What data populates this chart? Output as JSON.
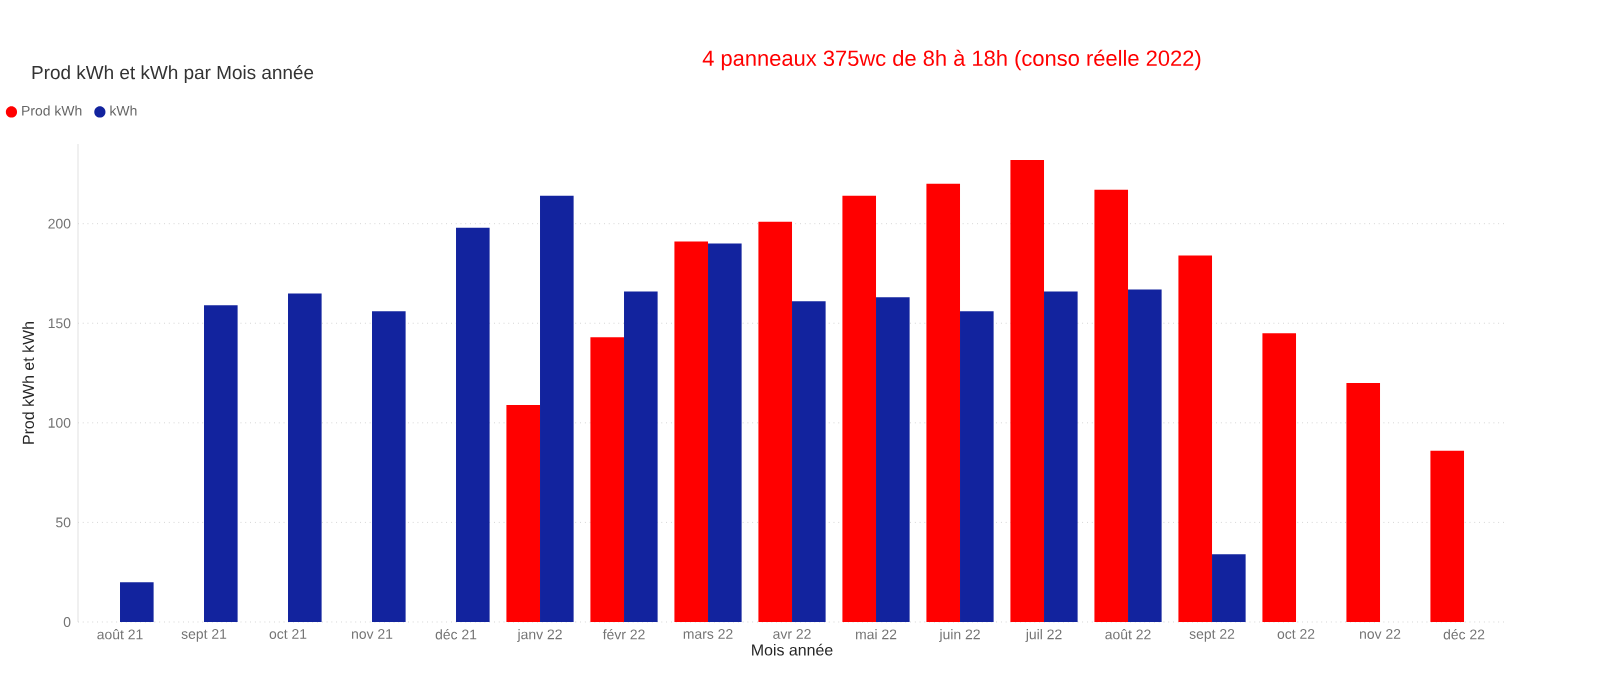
{
  "chart_data": {
    "type": "bar",
    "title": "Prod kWh et kWh par Mois année",
    "annotations": [
      "4 panneaux 375wc de 8h à 18h (conso réelle 2022)"
    ],
    "xlabel": "Mois année",
    "ylabel": "Prod kWh et kWh",
    "categories": [
      "août 21",
      "sept 21",
      "oct 21",
      "nov 21",
      "déc 21",
      "janv 22",
      "févr 22",
      "mars 22",
      "avr 22",
      "mai 22",
      "juin 22",
      "juil 22",
      "août 22",
      "sept 22",
      "oct 22",
      "nov 22",
      "déc 22"
    ],
    "series": [
      {
        "name": "Prod kWh",
        "color": "#ff0000",
        "values": [
          null,
          null,
          null,
          null,
          null,
          109,
          143,
          191,
          201,
          214,
          220,
          232,
          217,
          184,
          145,
          120,
          86
        ]
      },
      {
        "name": "kWh",
        "color": "#12239e",
        "values": [
          20,
          159,
          165,
          156,
          198,
          214,
          166,
          190,
          161,
          163,
          156,
          166,
          167,
          34,
          null,
          null,
          null
        ]
      }
    ],
    "ylim": [
      0,
      240
    ],
    "yticks": [
      0,
      50,
      100,
      150,
      200
    ],
    "grid": "y",
    "legend": "top left"
  }
}
